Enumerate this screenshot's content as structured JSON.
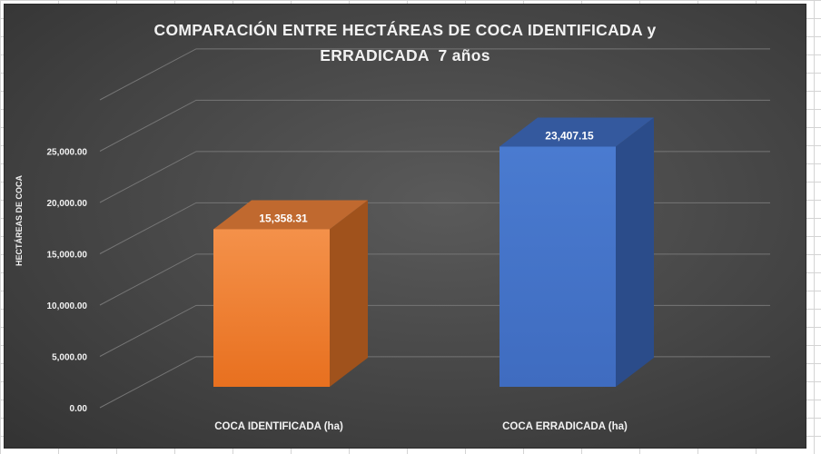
{
  "chart_data": {
    "type": "bar",
    "title_lines": [
      "COMPARACIÓN ENTRE HECTÁREAS DE COCA IDENTIFICADA y",
      "ERRADICADA  7 años"
    ],
    "xlabel": "",
    "ylabel": "HECTÁREAS DE COCA",
    "categories": [
      "COCA IDENTIFICADA (ha)",
      "COCA ERRADICADA (ha)"
    ],
    "values": [
      15358.31,
      23407.15
    ],
    "value_labels": [
      "15,358.31",
      "23,407.15"
    ],
    "ylim": [
      0,
      30000
    ],
    "yticks": [
      0,
      5000,
      10000,
      15000,
      20000,
      25000
    ],
    "ytick_labels": [
      "0.00",
      "5,000.00",
      "10,000.00",
      "15,000.00",
      "20,000.00",
      "25,000.00"
    ],
    "grid": true,
    "style": "3d-column",
    "colors": [
      "#ED7D31",
      "#4472C4"
    ]
  }
}
